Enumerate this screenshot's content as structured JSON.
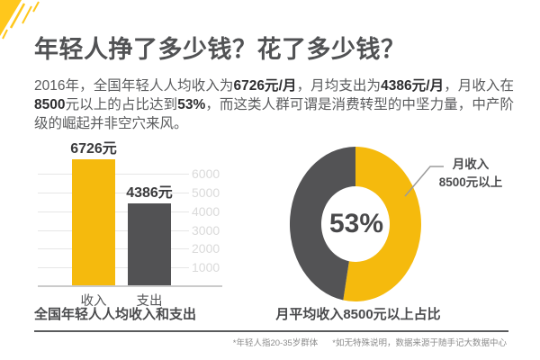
{
  "title": "年轻人挣了多少钱？花了多少钱？",
  "intro": {
    "segments": [
      "2016年，全国年轻人人均收入为",
      "6726元/月",
      "，月均支出为",
      "4386元/月",
      "，月收入在",
      "8500",
      "元以上的占比达到",
      "53%",
      "，而这类人群可谓是消费转型的中坚力量，中产阶级的崛起并非空穴来风。"
    ]
  },
  "chart_data": [
    {
      "type": "bar",
      "title": "全国年轻人人均收入和支出",
      "categories": [
        "收入",
        "支出"
      ],
      "values": [
        6726,
        4386
      ],
      "value_labels": [
        "6726元",
        "4386元"
      ],
      "colors": [
        "#F5BA0D",
        "#525254"
      ],
      "unit": "元/月",
      "xlabel": "",
      "ylabel": "",
      "ylim": [
        0,
        7450
      ],
      "yticks": [
        1000,
        2000,
        3000,
        4000,
        5000,
        6000
      ],
      "grid": true,
      "ytick_side": "right"
    },
    {
      "type": "pie",
      "donut": true,
      "title": "月平均收入8500元以上占比",
      "slices": [
        {
          "label": "月收入8500元以上",
          "value": 53,
          "color": "#F5BA0D"
        },
        {
          "label": "",
          "value": 47,
          "color": "#535355"
        }
      ],
      "center_label": "53%",
      "callout_label_line1": "月收入",
      "callout_label_line2": "8500元以上",
      "start_angle_deg": 0,
      "direction": "clockwise"
    }
  ],
  "footer": {
    "note_left": "*年轻人指20-35岁群体",
    "note_right": "*如无特殊说明，数据来源于随手记大数据中心"
  },
  "colors": {
    "accent_yellow": "#F5BA0D",
    "decoration_yellow": "#FFC71C",
    "dark_gray": "#525254",
    "grid_line": "#E6E6E6",
    "tick_text": "#DADADA",
    "body_text": "#5A5B5D",
    "emphasis_text": "#2E2E30",
    "footnote_text": "#8C8C8C"
  }
}
